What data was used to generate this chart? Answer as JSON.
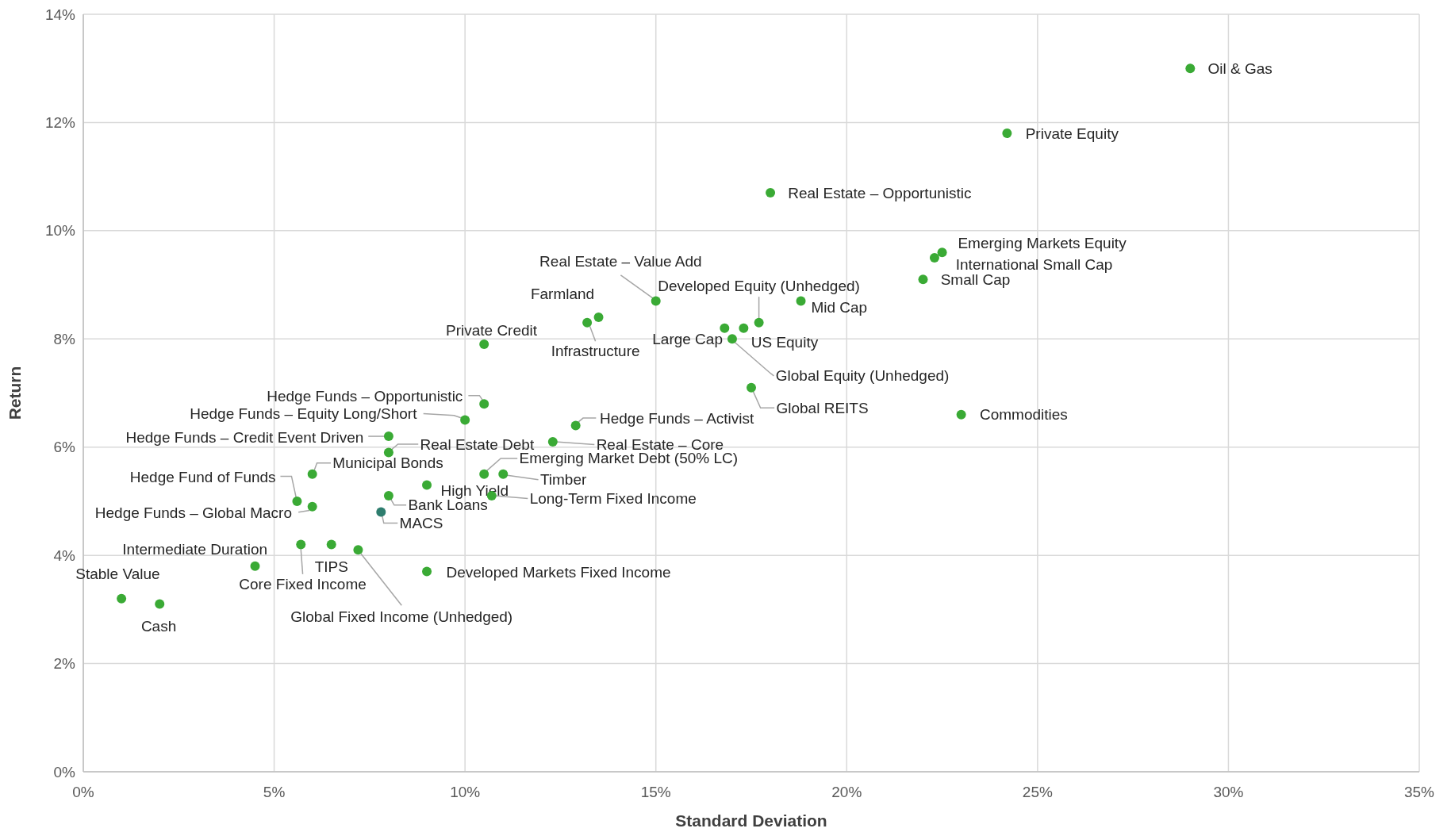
{
  "chart_data": {
    "type": "scatter",
    "xlabel": "Standard Deviation",
    "ylabel": "Return",
    "xlim": [
      0,
      35
    ],
    "ylim": [
      0,
      14
    ],
    "xticks": [
      {
        "value": 0,
        "label": "0%"
      },
      {
        "value": 5,
        "label": "5%"
      },
      {
        "value": 10,
        "label": "10%"
      },
      {
        "value": 15,
        "label": "15%"
      },
      {
        "value": 20,
        "label": "20%"
      },
      {
        "value": 25,
        "label": "25%"
      },
      {
        "value": 30,
        "label": "30%"
      },
      {
        "value": 35,
        "label": "35%"
      }
    ],
    "yticks": [
      {
        "value": 0,
        "label": "0%"
      },
      {
        "value": 2,
        "label": "2%"
      },
      {
        "value": 4,
        "label": "4%"
      },
      {
        "value": 6,
        "label": "6%"
      },
      {
        "value": 8,
        "label": "8%"
      },
      {
        "value": 10,
        "label": "10%"
      },
      {
        "value": 12,
        "label": "12%"
      },
      {
        "value": 14,
        "label": "14%"
      }
    ],
    "grid": true,
    "marker": "circle",
    "series": [
      {
        "x": [
          29.0,
          24.2,
          18.0,
          22.5,
          22.3,
          22.0,
          18.8,
          15.0,
          17.7,
          13.5,
          13.2,
          16.8,
          17.3,
          17.0,
          10.5,
          17.5,
          23.0,
          10.5,
          10.0,
          12.9,
          8.0,
          12.3,
          8.0,
          6.0,
          10.5,
          11.0,
          9.0,
          5.6,
          8.0,
          10.7,
          6.0,
          7.8,
          4.5,
          5.7,
          6.5,
          7.2,
          9.0,
          1.0,
          2.0
        ],
        "values": [
          13.0,
          11.8,
          10.7,
          9.6,
          9.5,
          9.1,
          8.7,
          8.7,
          8.3,
          8.4,
          8.3,
          8.2,
          8.2,
          8.0,
          7.9,
          7.1,
          6.6,
          6.8,
          6.5,
          6.4,
          6.2,
          6.1,
          5.9,
          5.5,
          5.5,
          5.5,
          5.3,
          5.0,
          5.1,
          5.1,
          4.9,
          4.8,
          3.8,
          4.2,
          4.2,
          4.1,
          3.7,
          3.2,
          3.1
        ],
        "colors": [
          "#3aaa35",
          "#3aaa35",
          "#3aaa35",
          "#3aaa35",
          "#3aaa35",
          "#3aaa35",
          "#3aaa35",
          "#3aaa35",
          "#3aaa35",
          "#3aaa35",
          "#3aaa35",
          "#3aaa35",
          "#3aaa35",
          "#3aaa35",
          "#3aaa35",
          "#3aaa35",
          "#3aaa35",
          "#3aaa35",
          "#3aaa35",
          "#3aaa35",
          "#3aaa35",
          "#3aaa35",
          "#3aaa35",
          "#3aaa35",
          "#3aaa35",
          "#3aaa35",
          "#3aaa35",
          "#3aaa35",
          "#3aaa35",
          "#3aaa35",
          "#3aaa35",
          "#2e7d6e",
          "#3aaa35",
          "#3aaa35",
          "#3aaa35",
          "#3aaa35",
          "#3aaa35",
          "#3aaa35",
          "#3aaa35"
        ]
      }
    ],
    "annotations": [
      {
        "text": "Oil & Gas",
        "x": 29.0,
        "y": 13.0
      },
      {
        "text": "Private Equity",
        "x": 24.2,
        "y": 11.8
      },
      {
        "text": "Real Estate – Opportunistic",
        "x": 18.0,
        "y": 10.7
      },
      {
        "text": "Emerging Markets Equity",
        "x": 22.5,
        "y": 9.6
      },
      {
        "text": "International Small Cap",
        "x": 22.3,
        "y": 9.5
      },
      {
        "text": "Small Cap",
        "x": 22.0,
        "y": 9.1
      },
      {
        "text": "Mid Cap",
        "x": 18.8,
        "y": 8.7
      },
      {
        "text": "Real Estate – Value Add",
        "x": 15.0,
        "y": 8.7
      },
      {
        "text": "Developed Equity (Unhedged)",
        "x": 17.7,
        "y": 8.3
      },
      {
        "text": "Farmland",
        "x": 13.5,
        "y": 8.4
      },
      {
        "text": "Infrastructure",
        "x": 13.2,
        "y": 8.3
      },
      {
        "text": "Large Cap",
        "x": 16.8,
        "y": 8.2
      },
      {
        "text": "US Equity",
        "x": 17.3,
        "y": 8.2
      },
      {
        "text": "Global Equity (Unhedged)",
        "x": 17.0,
        "y": 8.0
      },
      {
        "text": "Private Credit",
        "x": 10.5,
        "y": 7.9
      },
      {
        "text": "Global REITS",
        "x": 17.5,
        "y": 7.1
      },
      {
        "text": "Commodities",
        "x": 23.0,
        "y": 6.6
      },
      {
        "text": "Hedge Funds – Opportunistic",
        "x": 10.5,
        "y": 6.8
      },
      {
        "text": "Hedge Funds – Equity Long/Short",
        "x": 10.0,
        "y": 6.5
      },
      {
        "text": "Hedge Funds – Activist",
        "x": 12.9,
        "y": 6.4
      },
      {
        "text": "Hedge Funds – Credit Event Driven",
        "x": 8.0,
        "y": 6.2
      },
      {
        "text": "Real Estate – Core",
        "x": 12.3,
        "y": 6.1
      },
      {
        "text": "Real Estate Debt",
        "x": 8.0,
        "y": 5.9
      },
      {
        "text": "Municipal Bonds",
        "x": 6.0,
        "y": 5.5
      },
      {
        "text": "Emerging Market Debt (50% LC)",
        "x": 10.5,
        "y": 5.5
      },
      {
        "text": "Timber",
        "x": 11.0,
        "y": 5.5
      },
      {
        "text": "High Yield",
        "x": 9.0,
        "y": 5.3
      },
      {
        "text": "Hedge Fund of Funds",
        "x": 5.6,
        "y": 5.0
      },
      {
        "text": "Bank Loans",
        "x": 8.0,
        "y": 5.1
      },
      {
        "text": "Long-Term Fixed Income",
        "x": 10.7,
        "y": 5.1
      },
      {
        "text": "Hedge Funds – Global Macro",
        "x": 6.0,
        "y": 4.9
      },
      {
        "text": "MACS",
        "x": 7.8,
        "y": 4.8
      },
      {
        "text": "Intermediate Duration",
        "x": 4.5,
        "y": 3.8
      },
      {
        "text": "Core Fixed Income",
        "x": 5.7,
        "y": 4.2
      },
      {
        "text": "TIPS",
        "x": 6.5,
        "y": 4.2
      },
      {
        "text": "Global Fixed Income (Unhedged)",
        "x": 7.2,
        "y": 4.1
      },
      {
        "text": "Developed Markets Fixed Income",
        "x": 9.0,
        "y": 3.7
      },
      {
        "text": "Stable Value",
        "x": 1.0,
        "y": 3.2
      },
      {
        "text": "Cash",
        "x": 2.0,
        "y": 3.1
      }
    ]
  }
}
